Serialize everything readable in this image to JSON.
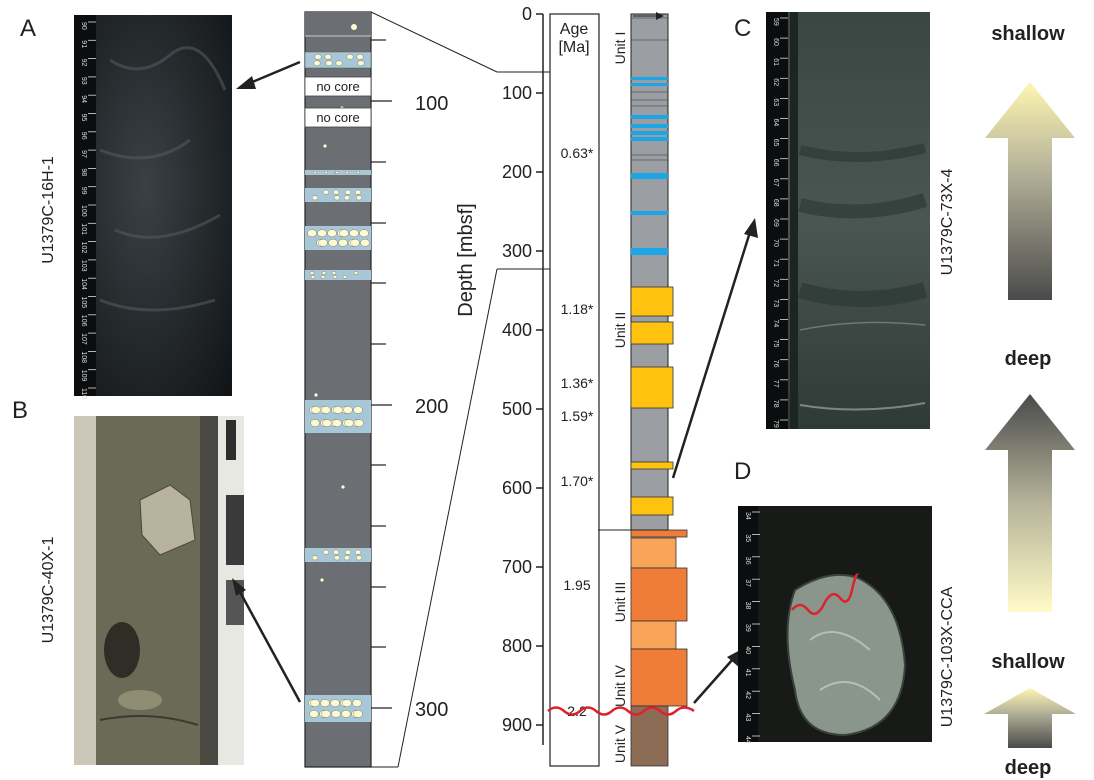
{
  "panel_letters": {
    "a": "A",
    "b": "B",
    "c": "C",
    "d": "D"
  },
  "core_labels": {
    "a": "U1379C-16H-1",
    "b": "U1379C-40X-1",
    "c": "U1379C-73X-4",
    "d": "U1379C-103X-CCA"
  },
  "ruler_marks": {
    "a": [
      "90",
      "91",
      "92",
      "93",
      "94",
      "95",
      "96",
      "97",
      "98",
      "99",
      "100",
      "101",
      "102",
      "103",
      "104",
      "105",
      "106",
      "107",
      "108",
      "109",
      "110"
    ],
    "c": [
      "59",
      "60",
      "61",
      "62",
      "63",
      "64",
      "65",
      "66",
      "67",
      "68",
      "69",
      "70",
      "71",
      "72",
      "73",
      "74",
      "75",
      "76",
      "77",
      "78",
      "79"
    ],
    "d": [
      "34",
      "35",
      "36",
      "37",
      "38",
      "39",
      "40",
      "41",
      "42",
      "43",
      "44"
    ]
  },
  "detail_column": {
    "no_core": [
      "no core",
      "no core"
    ],
    "depth_labels": [
      "100",
      "200",
      "300"
    ]
  },
  "main_column": {
    "axis_title": "Depth [mbsf]",
    "depth_ticks": [
      "0",
      "100",
      "200",
      "300",
      "400",
      "500",
      "600",
      "700",
      "800",
      "900"
    ],
    "age_header": [
      "Age",
      "[Ma]"
    ],
    "ages": [
      "0.63*",
      "1.18*",
      "1.36*",
      "1.59*",
      "1.70*",
      "1.95",
      "2.2"
    ],
    "units": [
      "Unit I",
      "Unit II",
      "Unit III",
      "Unit IV",
      "Unit V"
    ]
  },
  "bathymetry_legend": {
    "labels": [
      "shallow",
      "deep",
      "shallow",
      "deep"
    ]
  },
  "colors": {
    "mud": "#9b9fa3",
    "dark_mud": "#6b6e72",
    "blue_layer": "#1da6e6",
    "light_blue": "#a7c7d6",
    "yellow": "#ffc20e",
    "orange_light": "#f8a55a",
    "orange": "#f07c3a",
    "brown": "#8c6c55",
    "red_line": "#e0202a"
  }
}
